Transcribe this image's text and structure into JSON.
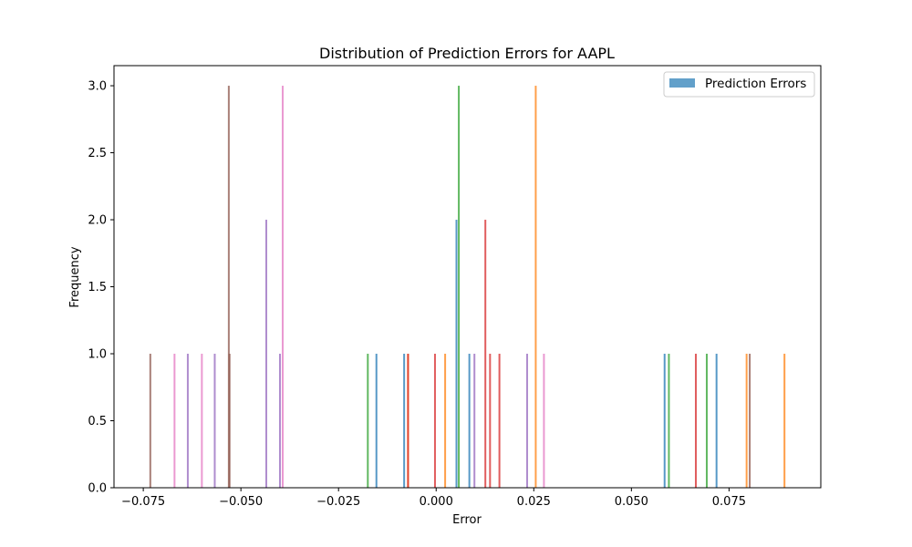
{
  "chart_data": {
    "type": "bar",
    "title": "Distribution of Prediction Errors for AAPL",
    "xlabel": "Error",
    "ylabel": "Frequency",
    "xlim": [
      -0.0825,
      0.0985
    ],
    "ylim": [
      0,
      3.15
    ],
    "x_ticks": [
      -0.075,
      -0.05,
      -0.025,
      0.0,
      0.025,
      0.05,
      0.075
    ],
    "x_tick_labels": [
      "−0.075",
      "−0.050",
      "−0.025",
      "0.000",
      "0.025",
      "0.050",
      "0.075"
    ],
    "y_ticks": [
      0.0,
      0.5,
      1.0,
      1.5,
      2.0,
      2.5,
      3.0
    ],
    "y_tick_labels": [
      "0.0",
      "0.5",
      "1.0",
      "1.5",
      "2.0",
      "2.5",
      "3.0"
    ],
    "grid": false,
    "legend": {
      "position": "top-right",
      "entries": [
        {
          "label": "Prediction Errors",
          "color": "#1f77b4"
        }
      ]
    },
    "colors": {
      "blue": "#1f77b4",
      "orange": "#ff7f0e",
      "green": "#2ca02c",
      "red": "#d62728",
      "purple": "#9467bd",
      "brown": "#8c564b",
      "pink": "#e377c2"
    },
    "series": [
      {
        "color": "blue",
        "bars": [
          {
            "x": -0.0153,
            "y": 1
          },
          {
            "x": -0.0082,
            "y": 1
          },
          {
            "x": 0.0052,
            "y": 2
          },
          {
            "x": 0.0085,
            "y": 1
          },
          {
            "x": 0.0585,
            "y": 1
          },
          {
            "x": 0.0718,
            "y": 1
          }
        ]
      },
      {
        "color": "orange",
        "bars": [
          {
            "x": -0.0072,
            "y": 1
          },
          {
            "x": 0.0023,
            "y": 1
          },
          {
            "x": 0.0255,
            "y": 3
          },
          {
            "x": 0.0795,
            "y": 1
          },
          {
            "x": 0.0892,
            "y": 1
          }
        ]
      },
      {
        "color": "green",
        "bars": [
          {
            "x": -0.0175,
            "y": 1
          },
          {
            "x": 0.0058,
            "y": 3
          },
          {
            "x": 0.0596,
            "y": 1
          },
          {
            "x": 0.0693,
            "y": 1
          }
        ]
      },
      {
        "color": "red",
        "bars": [
          {
            "x": -0.0072,
            "y": 1
          },
          {
            "x": -0.0003,
            "y": 1
          },
          {
            "x": 0.0126,
            "y": 2
          },
          {
            "x": 0.0138,
            "y": 1
          },
          {
            "x": 0.0162,
            "y": 1
          },
          {
            "x": 0.0665,
            "y": 1
          }
        ]
      },
      {
        "color": "purple",
        "bars": [
          {
            "x": -0.0636,
            "y": 1
          },
          {
            "x": -0.0567,
            "y": 1
          },
          {
            "x": -0.0435,
            "y": 2
          },
          {
            "x": -0.04,
            "y": 1
          },
          {
            "x": 0.0098,
            "y": 1
          },
          {
            "x": 0.0233,
            "y": 1
          }
        ]
      },
      {
        "color": "brown",
        "bars": [
          {
            "x": -0.0732,
            "y": 1
          },
          {
            "x": -0.0531,
            "y": 3
          },
          {
            "x": -0.0529,
            "y": 1
          },
          {
            "x": 0.0803,
            "y": 1
          }
        ]
      },
      {
        "color": "pink",
        "bars": [
          {
            "x": -0.067,
            "y": 1
          },
          {
            "x": -0.06,
            "y": 1
          },
          {
            "x": -0.0393,
            "y": 3
          },
          {
            "x": 0.0276,
            "y": 1
          }
        ]
      }
    ]
  }
}
